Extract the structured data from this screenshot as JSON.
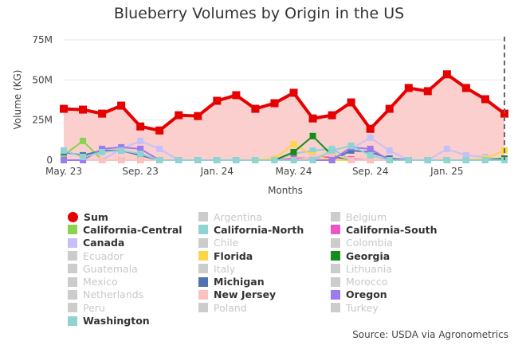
{
  "title": "Blueberry Volumes by Origin in the US",
  "source": "Source: USDA via Agronometrics",
  "colors": {
    "sum_line": "#e60000",
    "sum_fill": "#f9c7c5",
    "grid": "#e6e6e6",
    "dashed": "#666666",
    "off": "#cccccc"
  },
  "chart_data": {
    "type": "line",
    "title": "Blueberry Volumes by Origin in the US",
    "xlabel": "Months",
    "ylabel": "Volume (KG)",
    "ylim": [
      0,
      75000000
    ],
    "yticks": [
      0,
      25000000,
      50000000,
      75000000
    ],
    "ytick_labels": [
      "0",
      "25M",
      "50M",
      "75M"
    ],
    "xtick_labels": [
      "May. 23",
      "Sep. 23",
      "Jan. 24",
      "May. 24",
      "Sep. 24",
      "Jan. 25"
    ],
    "xtick_index": [
      0,
      4,
      8,
      12,
      16,
      20
    ],
    "grid": true,
    "legend_placement": "bottom",
    "months": [
      "May. 23",
      "Jun. 23",
      "Jul. 23",
      "Aug. 23",
      "Sep. 23",
      "Oct. 23",
      "Nov. 23",
      "Dec. 23",
      "Jan. 24",
      "Feb. 24",
      "Mar. 24",
      "Apr. 24",
      "May. 24",
      "Jun. 24",
      "Jul. 24",
      "Aug. 24",
      "Sep. 24",
      "Oct. 24",
      "Nov. 24",
      "Dec. 24",
      "Jan. 25",
      "Feb. 25",
      "Mar. 25",
      "Apr. 25"
    ],
    "series": [
      {
        "name": "Sum",
        "color": "#e60000",
        "visible": true,
        "marker": "circle",
        "values": [
          32000000,
          31500000,
          29000000,
          34000000,
          21000000,
          18500000,
          28000000,
          27500000,
          37000000,
          40500000,
          32000000,
          35500000,
          42000000,
          26000000,
          28000000,
          36000000,
          19500000,
          32000000,
          45000000,
          43000000,
          53500000,
          45000000,
          38000000,
          29000000
        ]
      },
      {
        "name": "Argentina",
        "color": "#cccccc",
        "visible": false,
        "values": []
      },
      {
        "name": "Belgium",
        "color": "#cccccc",
        "visible": false,
        "values": []
      },
      {
        "name": "California-Central",
        "color": "#8bd24e",
        "visible": true,
        "values": [
          3000000,
          12000000,
          0,
          0,
          0,
          0,
          0,
          0,
          0,
          0,
          0,
          0,
          0,
          0,
          0,
          0,
          0,
          0,
          0,
          0,
          0,
          0,
          0,
          0
        ]
      },
      {
        "name": "California-North",
        "color": "#8fd4d0",
        "visible": true,
        "values": [
          0,
          0,
          0,
          0,
          0,
          0,
          0,
          0,
          0,
          0,
          0,
          0,
          4000000,
          6000000,
          7000000,
          0,
          0,
          0,
          0,
          0,
          0,
          0,
          0,
          0
        ]
      },
      {
        "name": "California-South",
        "color": "#ee55c4",
        "visible": true,
        "values": [
          0,
          0,
          0,
          0,
          0,
          0,
          0,
          0,
          0,
          0,
          0,
          0,
          1000000,
          1500000,
          2000000,
          500000,
          0,
          0,
          0,
          0,
          0,
          0,
          0,
          0
        ]
      },
      {
        "name": "Canada",
        "color": "#c7c0f8",
        "visible": true,
        "values": [
          0,
          0,
          0,
          7000000,
          12000000,
          7000000,
          0,
          0,
          0,
          0,
          0,
          0,
          0,
          0,
          0,
          7000000,
          14000000,
          6000000,
          0,
          0,
          7000000,
          3000000,
          2000000,
          0
        ]
      },
      {
        "name": "Chile",
        "color": "#cccccc",
        "visible": false,
        "values": []
      },
      {
        "name": "Colombia",
        "color": "#cccccc",
        "visible": false,
        "values": []
      },
      {
        "name": "Ecuador",
        "color": "#cccccc",
        "visible": false,
        "values": []
      },
      {
        "name": "Florida",
        "color": "#fdd546",
        "visible": true,
        "values": [
          0,
          0,
          0,
          0,
          0,
          0,
          0,
          0,
          0,
          0,
          0,
          1000000,
          10000000,
          3000000,
          0,
          0,
          0,
          0,
          0,
          0,
          0,
          0,
          1000000,
          6000000
        ]
      },
      {
        "name": "Georgia",
        "color": "#138d1b",
        "visible": true,
        "values": [
          0,
          0,
          0,
          0,
          0,
          0,
          0,
          0,
          0,
          0,
          0,
          0,
          5000000,
          15000000,
          3000000,
          0,
          0,
          0,
          0,
          0,
          0,
          0,
          0,
          1000000
        ]
      },
      {
        "name": "Guatemala",
        "color": "#cccccc",
        "visible": false,
        "values": []
      },
      {
        "name": "Italy",
        "color": "#cccccc",
        "visible": false,
        "values": []
      },
      {
        "name": "Lithuania",
        "color": "#cccccc",
        "visible": false,
        "values": []
      },
      {
        "name": "Mexico",
        "color": "#cccccc",
        "visible": false,
        "values": []
      },
      {
        "name": "Michigan",
        "color": "#4f73b0",
        "visible": true,
        "values": [
          5000000,
          3000000,
          6000000,
          6000000,
          3000000,
          0,
          0,
          0,
          0,
          0,
          0,
          0,
          0,
          0,
          0,
          6000000,
          5000000,
          1000000,
          0,
          0,
          0,
          0,
          0,
          0
        ]
      },
      {
        "name": "Morocco",
        "color": "#cccccc",
        "visible": false,
        "values": []
      },
      {
        "name": "Netherlands",
        "color": "#cccccc",
        "visible": false,
        "values": []
      },
      {
        "name": "New Jersey",
        "color": "#fbc1c1",
        "visible": true,
        "values": [
          0,
          0,
          0,
          0,
          0,
          0,
          0,
          0,
          0,
          0,
          0,
          0,
          0,
          2000000,
          4000000,
          0,
          0,
          0,
          0,
          0,
          0,
          0,
          0,
          0
        ]
      },
      {
        "name": "Oregon",
        "color": "#9b7bf2",
        "visible": true,
        "values": [
          0,
          0,
          7000000,
          8000000,
          7000000,
          0,
          0,
          0,
          0,
          0,
          0,
          0,
          0,
          0,
          0,
          8000000,
          7000000,
          0,
          0,
          0,
          0,
          0,
          0,
          0
        ]
      },
      {
        "name": "Peru",
        "color": "#cccccc",
        "visible": false,
        "values": []
      },
      {
        "name": "Poland",
        "color": "#cccccc",
        "visible": false,
        "values": []
      },
      {
        "name": "Turkey",
        "color": "#cccccc",
        "visible": false,
        "values": []
      },
      {
        "name": "Washington",
        "color": "#8fd4d0",
        "visible": true,
        "values": [
          6000000,
          2000000,
          5000000,
          6000000,
          4000000,
          0,
          0,
          0,
          0,
          0,
          0,
          0,
          0,
          0,
          6000000,
          9000000,
          3000000,
          0,
          0,
          0,
          0,
          0,
          0,
          0
        ]
      }
    ]
  }
}
